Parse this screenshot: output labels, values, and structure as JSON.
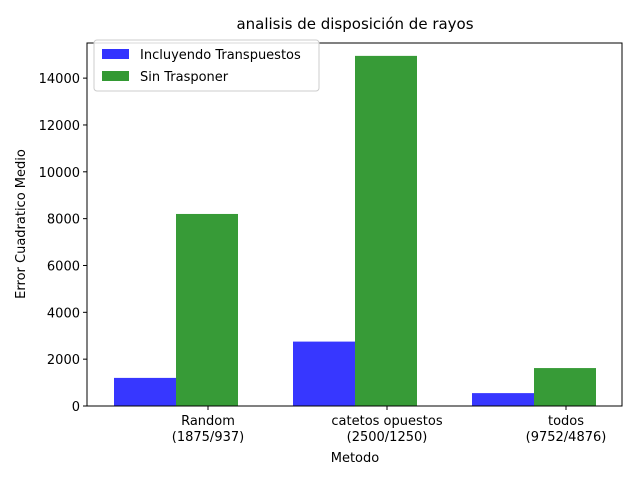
{
  "chart_data": {
    "type": "bar",
    "title": "analisis de disposición de rayos",
    "xlabel": "Metodo",
    "ylabel": "Error Cuadratico Medio",
    "ylim": [
      0,
      15500
    ],
    "yticks": [
      0,
      2000,
      4000,
      6000,
      8000,
      10000,
      12000,
      14000
    ],
    "categories": [
      [
        "Random",
        "(1875/937)"
      ],
      [
        "catetos opuestos",
        "(2500/1250)"
      ],
      [
        "todos",
        "(9752/4876)"
      ]
    ],
    "series": [
      {
        "name": "Incluyendo Transpuestos",
        "color": "#3333ff",
        "values": [
          1200,
          2750,
          550
        ]
      },
      {
        "name": "Sin Trasponer",
        "color": "#339933",
        "values": [
          8200,
          14950,
          1620
        ]
      }
    ],
    "legend_position": "top-left",
    "grid": false
  }
}
